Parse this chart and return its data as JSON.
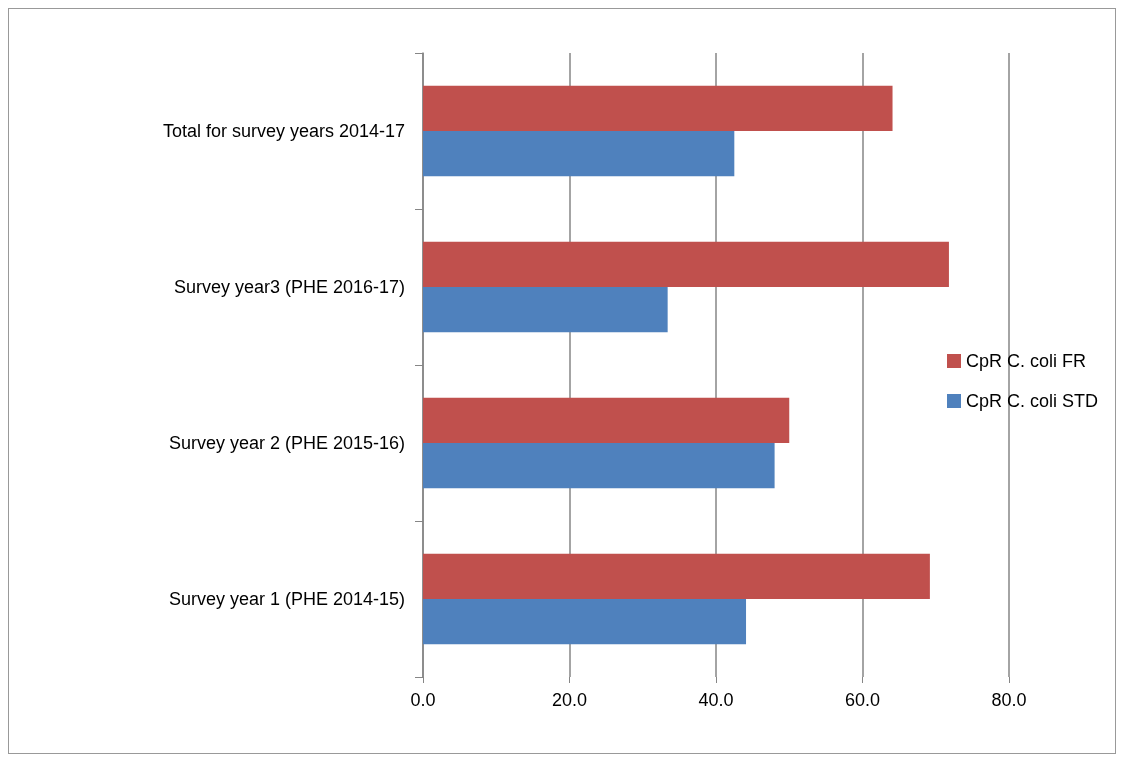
{
  "chart_data": {
    "type": "bar",
    "orientation": "horizontal",
    "categories": [
      "Total for survey years 2014-17",
      "Survey year3 (PHE 2016-17)",
      "Survey year 2 (PHE 2015-16)",
      "Survey year 1 (PHE 2014-15)"
    ],
    "series": [
      {
        "name": "CpR C. coli FR",
        "color": "#c0504d",
        "values": [
          64.1,
          71.8,
          50.0,
          69.2
        ]
      },
      {
        "name": "CpR C. coli STD",
        "color": "#4f81bd",
        "values": [
          42.5,
          33.4,
          48.0,
          44.1
        ]
      }
    ],
    "xlim": [
      0,
      80
    ],
    "xticks": [
      {
        "value": 0,
        "label": "0.0"
      },
      {
        "value": 20,
        "label": "20.0"
      },
      {
        "value": 40,
        "label": "40.0"
      },
      {
        "value": 60,
        "label": "60.0"
      },
      {
        "value": 80,
        "label": "80.0"
      }
    ],
    "grid": "x",
    "legend": "right"
  }
}
